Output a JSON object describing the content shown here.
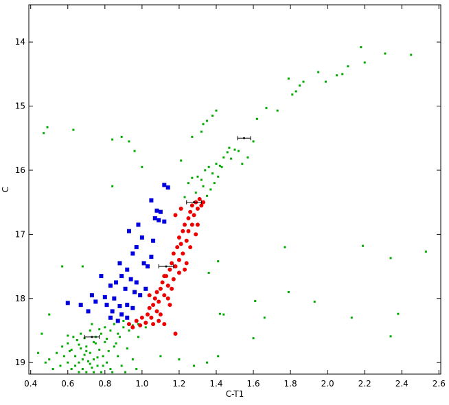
{
  "chart_data": {
    "type": "scatter",
    "x_label": "C-T1",
    "y_label": "C",
    "xlim": [
      0.39,
      2.61
    ],
    "ylim": [
      19.18,
      13.42
    ],
    "xticks": [
      0.4,
      0.6,
      0.8,
      {
        "value": 1,
        "label": "1.0"
      },
      1.2,
      1.4,
      1.6,
      1.8,
      {
        "value": 2,
        "label": "2.0"
      },
      2.2,
      2.4,
      2.6
    ],
    "yticks": [
      14,
      15,
      16,
      17,
      18,
      19
    ],
    "series": [
      {
        "color": "#00aa00",
        "marker": "small-square",
        "x": [
          0.47,
          0.49,
          0.63,
          0.84,
          0.89,
          0.93,
          0.96,
          1.0,
          0.84,
          1.21,
          1.27,
          1.32,
          1.33,
          1.35,
          1.38,
          1.4,
          1.57,
          1.6,
          1.62,
          1.67,
          1.73,
          1.79,
          1.81,
          1.83,
          1.85,
          1.87,
          1.95,
          1.99,
          2.05,
          2.08,
          2.11,
          2.18,
          2.2,
          2.31,
          2.45,
          1.77,
          2.19,
          2.34,
          2.53,
          1.61,
          1.66,
          1.79,
          1.93,
          2.13,
          2.38,
          2.34,
          1.6,
          1.42,
          1.44,
          1.41,
          1.35,
          1.28,
          1.36,
          1.41,
          0.57,
          0.68,
          0.5,
          0.46,
          1.1,
          1.2,
          1.25,
          1.27,
          1.3,
          1.32,
          1.34,
          1.36,
          1.38,
          1.4,
          1.42,
          1.44,
          1.46,
          1.48,
          1.5,
          1.52,
          1.54,
          1.33,
          1.35,
          1.37,
          1.29,
          1.31,
          1.23,
          1.39,
          1.41,
          1.43,
          1.47,
          0.9,
          0.85,
          0.8,
          0.83,
          0.87,
          0.78,
          0.75,
          0.72,
          0.9,
          0.95,
          0.98,
          0.93,
          0.88,
          0.81,
          0.77,
          0.6,
          0.62,
          0.64,
          0.66,
          0.68,
          0.7,
          0.72,
          0.74,
          0.76,
          0.78,
          0.65,
          0.67,
          0.69,
          0.71,
          0.73,
          0.75,
          0.77,
          0.79,
          0.81,
          0.83,
          0.58,
          0.6,
          0.62,
          0.56,
          0.54,
          0.52,
          0.85,
          0.87,
          0.89,
          0.91,
          0.86,
          0.7,
          0.66,
          0.63,
          0.69,
          0.74,
          0.8,
          0.82,
          0.68,
          0.72,
          0.64,
          0.76,
          0.7,
          0.66,
          0.6,
          0.57,
          0.5,
          0.48,
          0.44,
          0.95,
          0.97,
          0.92,
          0.74,
          0.79,
          0.84,
          0.61,
          0.67,
          0.73,
          0.98,
          1.02
        ],
        "values": [
          15.42,
          15.33,
          15.37,
          15.52,
          15.48,
          15.55,
          15.7,
          15.95,
          16.25,
          15.85,
          15.48,
          15.4,
          15.28,
          15.23,
          15.15,
          15.07,
          15.8,
          15.55,
          15.2,
          15.03,
          15.07,
          14.57,
          14.82,
          14.77,
          14.68,
          14.62,
          14.47,
          14.62,
          14.52,
          14.5,
          14.38,
          14.08,
          14.32,
          14.18,
          14.2,
          17.2,
          17.18,
          17.37,
          17.27,
          18.04,
          18.3,
          17.9,
          18.05,
          18.3,
          18.24,
          18.59,
          18.62,
          18.24,
          18.25,
          18.9,
          19.0,
          19.05,
          17.6,
          17.42,
          17.5,
          17.5,
          18.25,
          18.55,
          18.9,
          18.95,
          16.2,
          16.12,
          16.1,
          16.15,
          16.0,
          15.95,
          16.05,
          15.9,
          15.93,
          15.8,
          15.72,
          15.82,
          15.68,
          15.7,
          15.9,
          16.25,
          16.4,
          16.3,
          16.35,
          16.45,
          16.42,
          16.2,
          16.1,
          15.95,
          15.65,
          18.35,
          18.4,
          18.45,
          18.5,
          18.55,
          18.55,
          18.6,
          18.5,
          18.45,
          18.42,
          18.4,
          18.5,
          18.6,
          18.63,
          18.48,
          18.7,
          18.8,
          18.9,
          19.0,
          19.1,
          18.75,
          18.85,
          18.95,
          19.05,
          19.15,
          18.65,
          18.78,
          18.88,
          18.98,
          19.08,
          18.7,
          18.8,
          18.9,
          19.0,
          19.1,
          18.9,
          19.0,
          19.1,
          19.05,
          18.85,
          19.1,
          18.75,
          18.9,
          19.05,
          19.15,
          18.7,
          19.15,
          19.15,
          18.6,
          18.62,
          18.68,
          18.68,
          18.82,
          18.95,
          19.02,
          19.05,
          18.92,
          18.82,
          18.72,
          18.58,
          18.75,
          18.95,
          19.0,
          18.85,
          18.95,
          19.1,
          18.78,
          19.15,
          19.05,
          19.15,
          18.82,
          18.55,
          18.4,
          18.6,
          18.45
        ]
      },
      {
        "color": "#ee0000",
        "marker": "circle",
        "x": [
          0.93,
          0.95,
          0.97,
          0.99,
          1.0,
          1.02,
          1.03,
          1.04,
          1.05,
          1.06,
          1.07,
          1.08,
          1.08,
          1.09,
          1.1,
          1.1,
          1.11,
          1.12,
          1.12,
          1.13,
          1.14,
          1.15,
          1.15,
          1.16,
          1.17,
          1.17,
          1.18,
          1.18,
          1.19,
          1.2,
          1.2,
          1.21,
          1.22,
          1.22,
          1.23,
          1.24,
          1.25,
          1.25,
          1.26,
          1.27,
          1.27,
          1.28,
          1.29,
          1.3,
          1.31,
          1.32,
          1.33,
          1.09,
          1.06,
          1.14,
          1.2,
          1.24,
          1.29,
          1.3,
          1.26,
          1.23,
          1.16,
          1.12,
          1.04,
          1.18,
          1.21
        ],
        "values": [
          18.4,
          18.45,
          18.35,
          18.42,
          18.3,
          18.38,
          18.25,
          18.15,
          18.3,
          18.1,
          18.0,
          18.2,
          17.9,
          18.05,
          17.85,
          18.25,
          17.75,
          17.95,
          18.4,
          17.65,
          17.8,
          17.55,
          18.1,
          17.45,
          17.7,
          17.3,
          17.5,
          18.55,
          17.2,
          17.4,
          17.05,
          17.15,
          16.95,
          17.3,
          16.85,
          17.1,
          16.75,
          16.95,
          16.65,
          16.85,
          16.55,
          16.7,
          16.5,
          16.6,
          16.45,
          16.55,
          16.5,
          18.35,
          18.4,
          18.0,
          17.6,
          17.45,
          17.0,
          16.85,
          17.2,
          17.55,
          17.85,
          17.65,
          17.95,
          16.7,
          16.6
        ]
      },
      {
        "color": "#0000dd",
        "marker": "square",
        "x": [
          1.12,
          1.14,
          1.05,
          1.08,
          1.1,
          1.07,
          1.09,
          1.12,
          0.98,
          0.93,
          1.06,
          1.0,
          0.97,
          1.05,
          0.95,
          1.01,
          1.03,
          0.92,
          0.88,
          0.86,
          0.89,
          0.78,
          0.94,
          0.97,
          0.83,
          0.91,
          0.96,
          1.02,
          0.99,
          0.8,
          0.73,
          0.85,
          0.75,
          0.6,
          0.67,
          0.81,
          0.88,
          0.92,
          0.95,
          0.84,
          0.89,
          0.87,
          0.92,
          0.71,
          0.83
        ],
        "values": [
          16.23,
          16.27,
          16.47,
          16.63,
          16.65,
          16.75,
          16.78,
          16.8,
          16.85,
          16.95,
          17.1,
          17.05,
          17.2,
          17.35,
          17.3,
          17.45,
          17.5,
          17.55,
          17.45,
          17.75,
          17.65,
          17.65,
          17.7,
          17.75,
          17.8,
          17.85,
          17.9,
          17.85,
          17.95,
          17.98,
          17.95,
          18.0,
          18.05,
          18.07,
          18.1,
          18.1,
          18.12,
          18.1,
          18.15,
          18.2,
          18.25,
          18.35,
          18.3,
          18.2,
          18.3
        ]
      },
      {
        "color": "#000000",
        "marker": "errorbar",
        "x": [
          1.55,
          1.28,
          1.13,
          0.73
        ],
        "values": [
          15.5,
          16.5,
          17.5,
          18.6
        ],
        "xerr": [
          0.035,
          0.04,
          0.04,
          0.04
        ]
      }
    ]
  }
}
